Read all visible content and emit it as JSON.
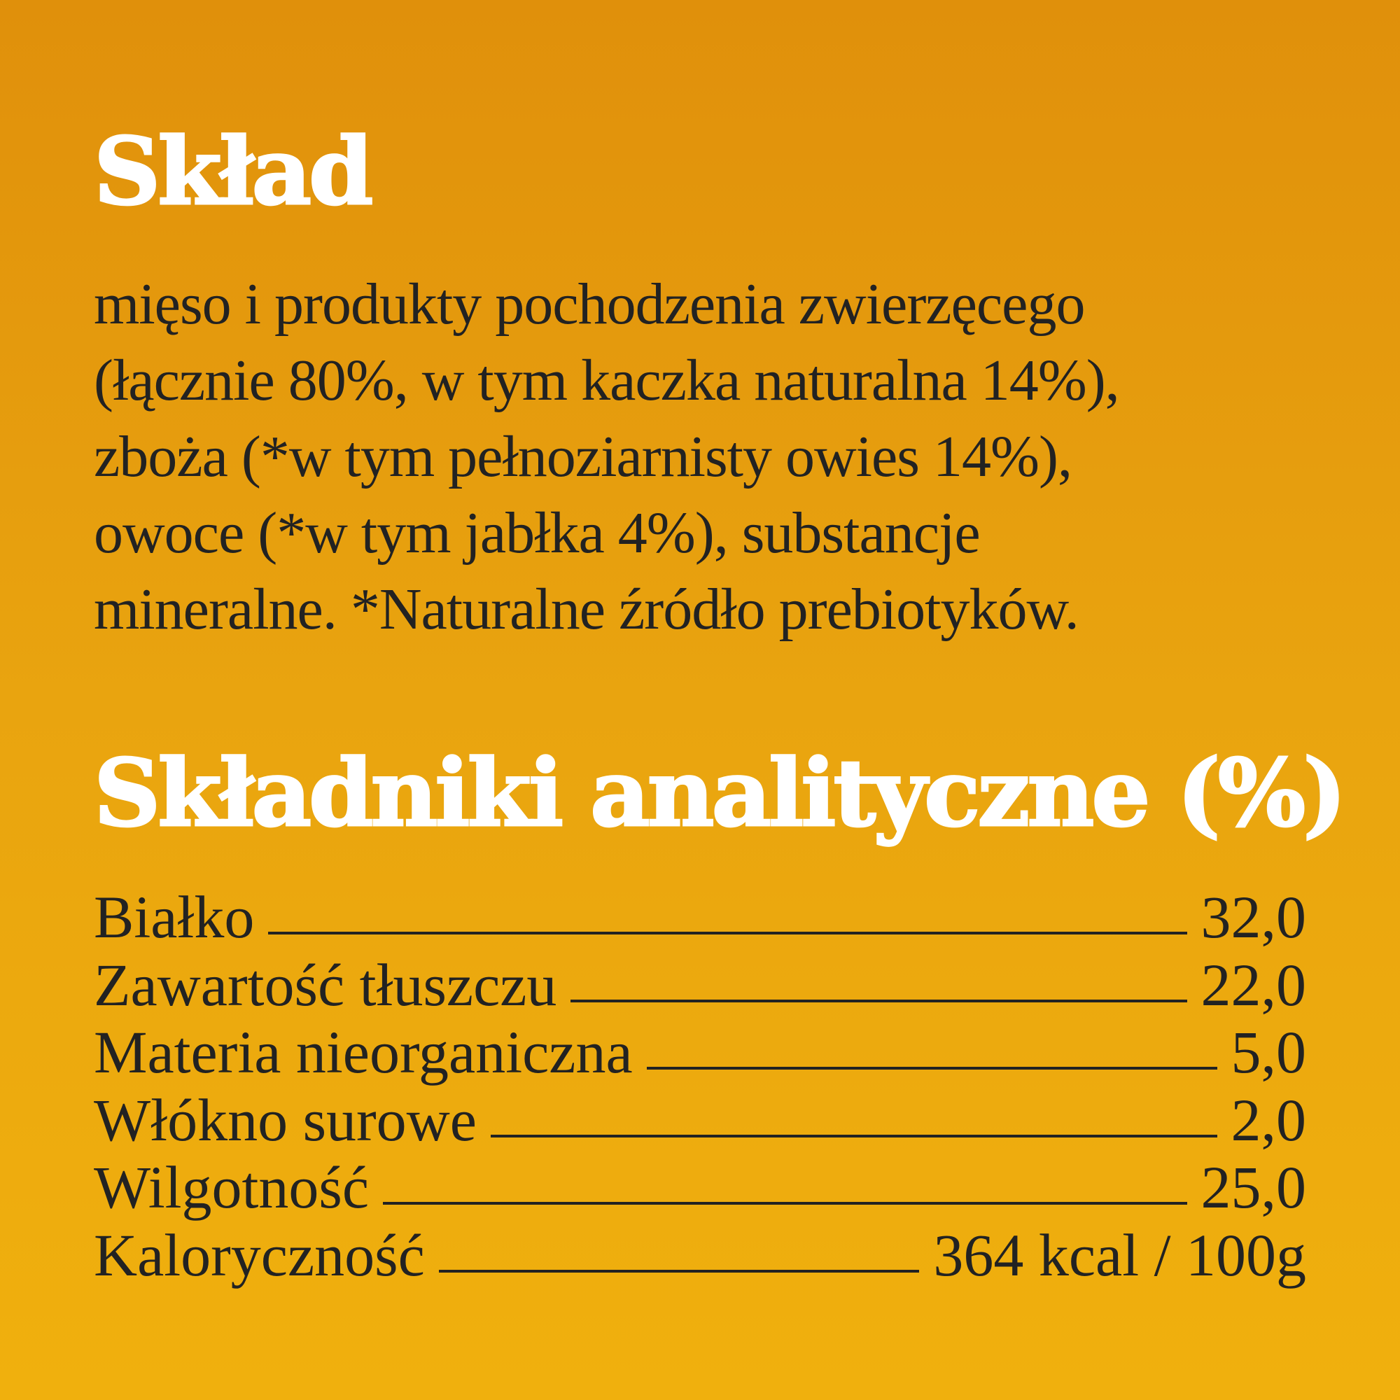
{
  "composition": {
    "title": "Skład",
    "lines": [
      "mięso i produkty pochodzenia zwierzęcego",
      "(łącznie 80%, w tym kaczka naturalna 14%),",
      "zboża (*w tym pełnoziarnisty owies 14%),",
      "owoce (*w tym jabłka 4%), substancje",
      "mineralne. *Naturalne źródło prebiotyków."
    ]
  },
  "analysis": {
    "title": "Składniki analityczne (%)",
    "rows": [
      {
        "label": "Białko",
        "value": "32,0"
      },
      {
        "label": "Zawartość tłuszczu",
        "value": "22,0"
      },
      {
        "label": "Materia nieorganiczna",
        "value": "5,0"
      },
      {
        "label": "Włókno surowe",
        "value": "2,0"
      },
      {
        "label": "Wilgotność",
        "value": "25,0"
      },
      {
        "label": "Kaloryczność",
        "value": "364 kcal / 100g"
      }
    ]
  },
  "colors": {
    "background_top": "#e0900b",
    "background_bottom": "#f0b00d",
    "heading": "#ffffff",
    "text": "#222222"
  }
}
